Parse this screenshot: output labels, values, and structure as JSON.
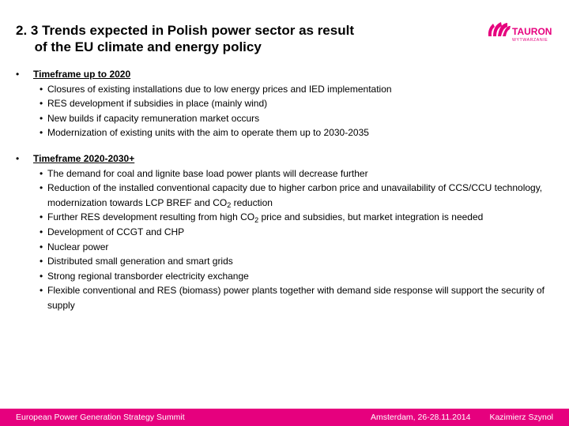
{
  "colors": {
    "accent": "#e6007e",
    "text": "#000000",
    "footer_text": "#ffffff",
    "background": "#ffffff"
  },
  "logo": {
    "name": "TAURON",
    "subtitle": "WYTWARZANIE",
    "color": "#e6007e"
  },
  "title": {
    "line1": "2. 3 Trends expected in Polish power sector as result",
    "line2": "of the EU climate and energy policy"
  },
  "sections": [
    {
      "heading": "Timeframe up to 2020",
      "items": [
        "Closures of existing installations due to low energy prices and IED implementation",
        "RES development if subsidies in place (mainly wind)",
        "New builds if capacity  remuneration market occurs",
        "Modernization of existing units with the aim to operate them up to 2030-2035"
      ]
    },
    {
      "heading": "Timeframe 2020-2030+",
      "items": [
        "The demand for coal and lignite base load power plants will decrease further",
        "Reduction of the installed conventional capacity due to higher carbon price and unavailability of CCS/CCU technology, modernization towards LCP BREF and CO<sub>2</sub> reduction",
        "Further RES development resulting from high CO<sub>2</sub> price and subsidies, but market integration is needed",
        "Development of CCGT and CHP",
        "Nuclear power",
        "Distributed small generation and smart grids",
        "Strong regional transborder electricity exchange",
        "Flexible conventional and RES (biomass) power plants together with demand side response will support the security of supply"
      ]
    }
  ],
  "footer": {
    "left": "European Power Generation Strategy Summit",
    "mid": "Amsterdam, 26-28.11.2014",
    "right": "Kazimierz Szynol"
  }
}
